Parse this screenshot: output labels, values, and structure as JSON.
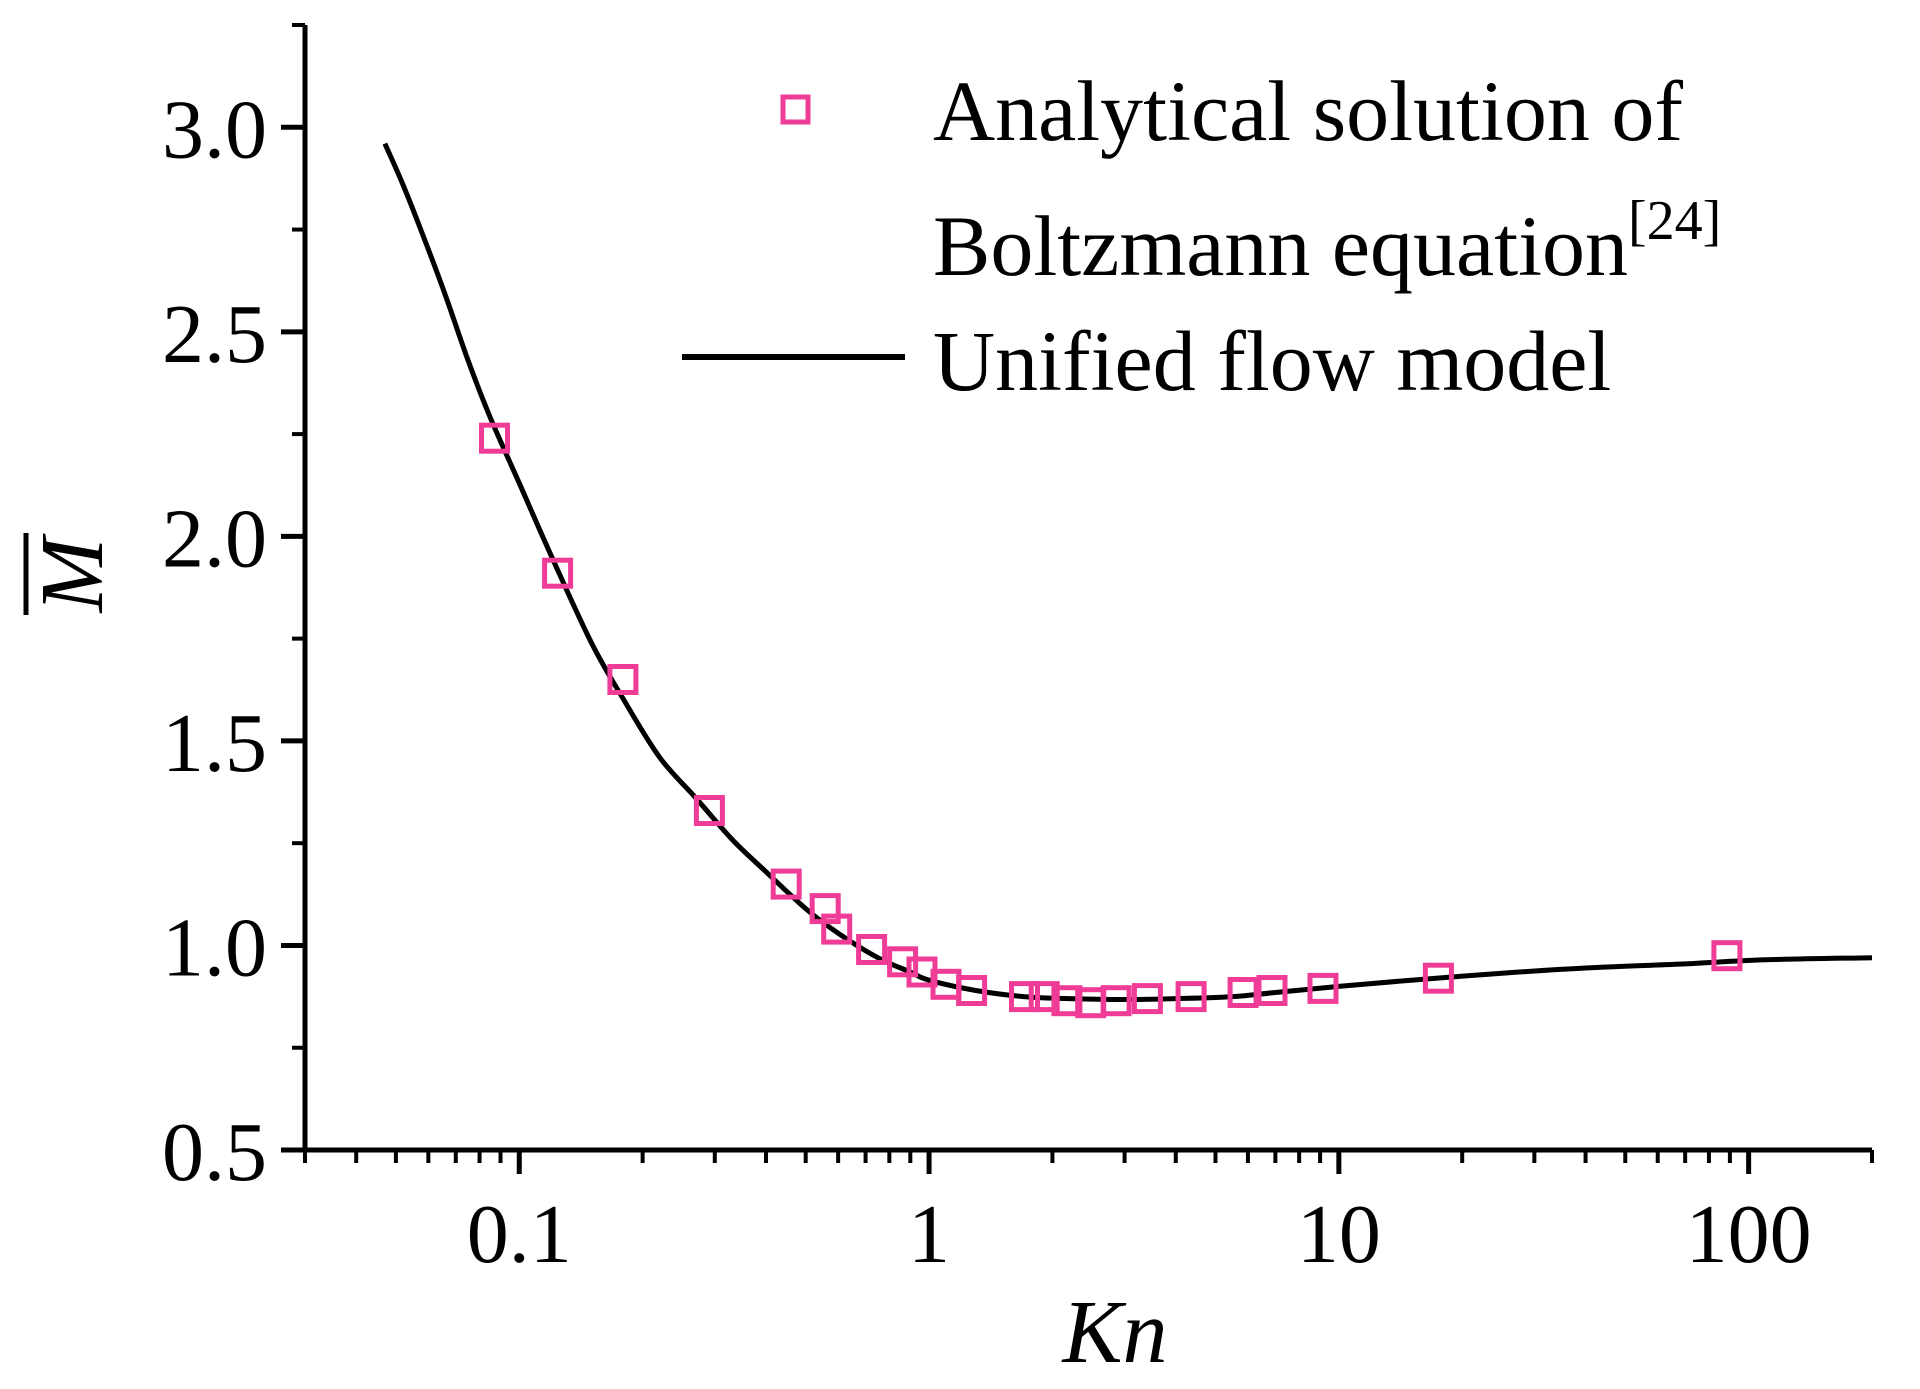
{
  "chart_data": {
    "type": "scatter",
    "xlabel": "Kn",
    "ylabel": "M",
    "x_scale": "log",
    "xlim": [
      0.03,
      200
    ],
    "ylim": [
      0.5,
      3.25
    ],
    "x_ticks": [
      {
        "value": 0.1,
        "label": "0.1"
      },
      {
        "value": 1,
        "label": "1"
      },
      {
        "value": 10,
        "label": "10"
      },
      {
        "value": 100,
        "label": "100"
      }
    ],
    "y_ticks": [
      {
        "value": 0.5,
        "label": "0.5"
      },
      {
        "value": 1.0,
        "label": "1.0"
      },
      {
        "value": 1.5,
        "label": "1.5"
      },
      {
        "value": 2.0,
        "label": "2.0"
      },
      {
        "value": 2.5,
        "label": "2.5"
      },
      {
        "value": 3.0,
        "label": "3.0"
      }
    ],
    "legend": {
      "placement": "top-right",
      "entries": [
        {
          "text": "Analytical solution  of",
          "marker": "square"
        },
        {
          "text": "Boltzmann equation",
          "superscript": "[24]"
        },
        {
          "text": "Unified flow model",
          "marker": "line"
        }
      ]
    },
    "series": [
      {
        "kind": "markers",
        "marker": "square",
        "color": "#ee3c97",
        "points": [
          [
            0.087,
            2.24
          ],
          [
            0.124,
            1.91
          ],
          [
            0.179,
            1.65
          ],
          [
            0.291,
            1.33
          ],
          [
            0.448,
            1.15
          ],
          [
            0.558,
            1.09
          ],
          [
            0.595,
            1.04
          ],
          [
            0.724,
            0.99
          ],
          [
            0.862,
            0.96
          ],
          [
            0.961,
            0.935
          ],
          [
            1.1,
            0.905
          ],
          [
            1.27,
            0.89
          ],
          [
            1.71,
            0.875
          ],
          [
            1.91,
            0.875
          ],
          [
            2.17,
            0.865
          ],
          [
            2.48,
            0.86
          ],
          [
            2.86,
            0.865
          ],
          [
            3.41,
            0.87
          ],
          [
            4.36,
            0.875
          ],
          [
            5.84,
            0.885
          ],
          [
            6.87,
            0.89
          ],
          [
            9.15,
            0.895
          ],
          [
            17.5,
            0.92
          ],
          [
            88.5,
            0.975
          ]
        ]
      },
      {
        "kind": "line",
        "color": "#000000",
        "points": [
          [
            0.047,
            2.96
          ],
          [
            0.052,
            2.86
          ],
          [
            0.058,
            2.74
          ],
          [
            0.066,
            2.59
          ],
          [
            0.075,
            2.43
          ],
          [
            0.085,
            2.29
          ],
          [
            0.1,
            2.13
          ],
          [
            0.12,
            1.95
          ],
          [
            0.15,
            1.74
          ],
          [
            0.18,
            1.6
          ],
          [
            0.22,
            1.46
          ],
          [
            0.27,
            1.36
          ],
          [
            0.33,
            1.26
          ],
          [
            0.4,
            1.18
          ],
          [
            0.5,
            1.09
          ],
          [
            0.6,
            1.03
          ],
          [
            0.75,
            0.97
          ],
          [
            0.9,
            0.935
          ],
          [
            1.0,
            0.915
          ],
          [
            1.3,
            0.89
          ],
          [
            1.7,
            0.875
          ],
          [
            2.2,
            0.87
          ],
          [
            3.0,
            0.868
          ],
          [
            4.0,
            0.87
          ],
          [
            5.5,
            0.875
          ],
          [
            7.0,
            0.885
          ],
          [
            10.0,
            0.9
          ],
          [
            15.0,
            0.915
          ],
          [
            25.0,
            0.932
          ],
          [
            40.0,
            0.945
          ],
          [
            70.0,
            0.955
          ],
          [
            110.0,
            0.965
          ],
          [
            200.0,
            0.97
          ]
        ]
      }
    ]
  }
}
